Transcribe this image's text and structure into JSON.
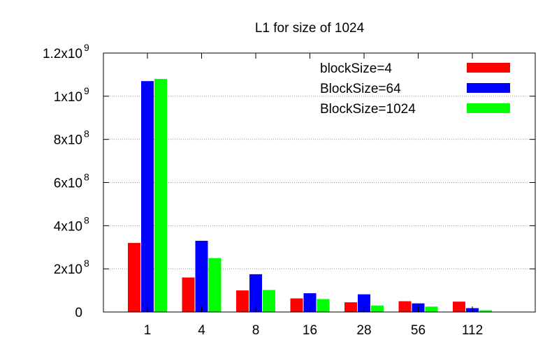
{
  "chart_data": {
    "type": "bar",
    "title": "L1 for size of 1024",
    "xlabel": "",
    "ylabel": "",
    "categories": [
      "1",
      "4",
      "8",
      "16",
      "28",
      "56",
      "112"
    ],
    "series": [
      {
        "name": "blockSize=4",
        "color": "#ff0000",
        "values": [
          320000000,
          160000000,
          100000000,
          63000000,
          45000000,
          50000000,
          48000000
        ]
      },
      {
        "name": "BlockSize=64",
        "color": "#0000ff",
        "values": [
          1070000000,
          330000000,
          175000000,
          87000000,
          82000000,
          40000000,
          18000000
        ]
      },
      {
        "name": "BlockSize=1024",
        "color": "#00ff00",
        "values": [
          1080000000,
          250000000,
          102000000,
          60000000,
          30000000,
          25000000,
          8000000
        ]
      }
    ],
    "ylim": [
      0,
      1200000000
    ],
    "y_ticks": [
      {
        "value": 0,
        "mantissa": "0",
        "exp": ""
      },
      {
        "value": 200000000,
        "mantissa": "2x10",
        "exp": "8"
      },
      {
        "value": 400000000,
        "mantissa": "4x10",
        "exp": "8"
      },
      {
        "value": 600000000,
        "mantissa": "6x10",
        "exp": "8"
      },
      {
        "value": 800000000,
        "mantissa": "8x10",
        "exp": "8"
      },
      {
        "value": 1000000000,
        "mantissa": "1x10",
        "exp": "9"
      },
      {
        "value": 1200000000,
        "mantissa": "1.2x10",
        "exp": "9"
      }
    ],
    "grid": "horizontal-dotted",
    "legend_position": "top-right"
  }
}
